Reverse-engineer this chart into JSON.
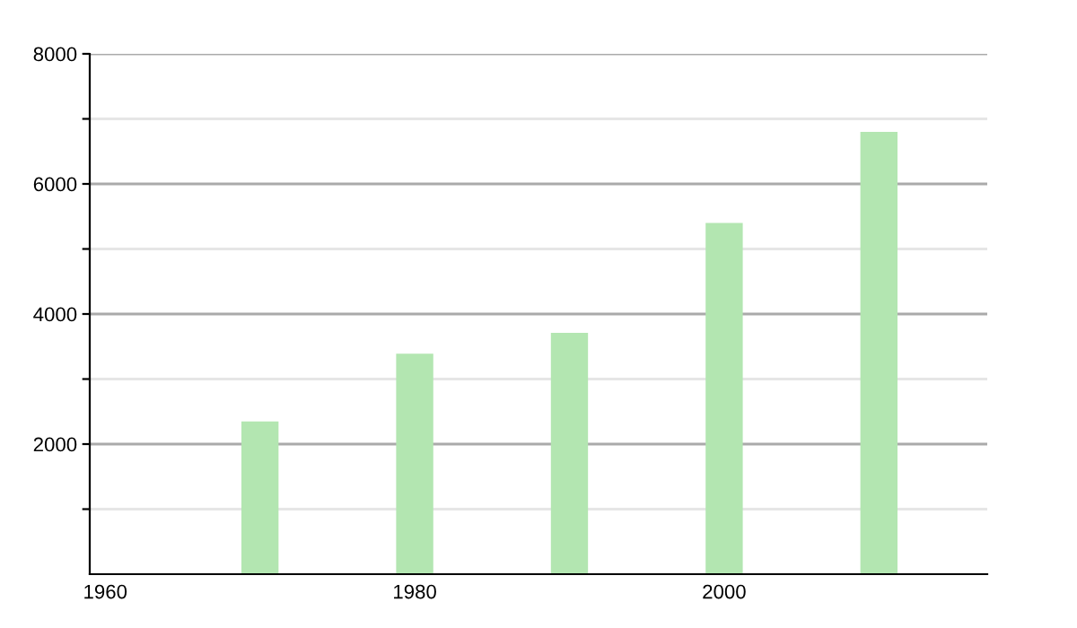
{
  "chart_data": {
    "type": "bar",
    "x": [
      1970,
      1980,
      1990,
      2000,
      2010
    ],
    "values": [
      2350,
      3390,
      3710,
      5400,
      6800
    ],
    "color": "#b3e6b1",
    "xlim": [
      1959,
      2017
    ],
    "xticks": [
      1960,
      1980,
      2000
    ],
    "ylim": [
      0,
      8000
    ],
    "yticks": [
      {
        "value": 1000,
        "label": null
      },
      2000,
      {
        "value": 3000,
        "label": null
      },
      4000,
      {
        "value": 5000,
        "label": null
      },
      6000,
      {
        "value": 7000,
        "label": null
      },
      8000
    ],
    "grid": "y"
  }
}
